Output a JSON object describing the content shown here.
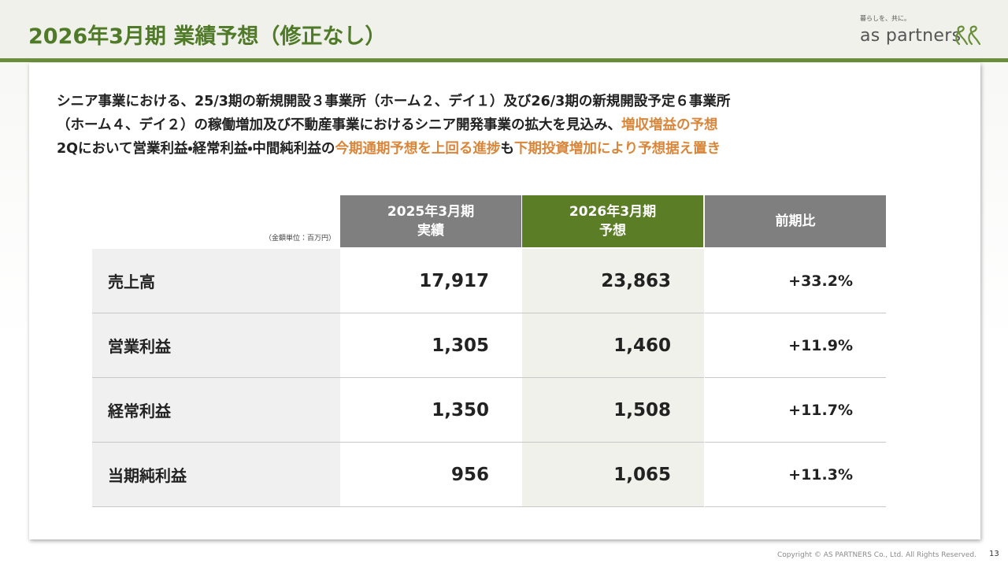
{
  "header": {
    "title": "2026年3月期 業績予想（修正なし）",
    "logo_tagline": "暮らしを、共に。",
    "logo_name": "as partners"
  },
  "body": {
    "lines": [
      [
        {
          "text": "シニア事業における、25/3期の新規開設３事業所（ホーム２、デイ１）及び26/3期の新規開設予定６事業所",
          "highlight": false
        }
      ],
      [
        {
          "text": "（ホーム４、デイ２）の稼働増加及び不動産事業におけるシニア開発事業の拡大を見込み、",
          "highlight": false
        },
        {
          "text": "増収増益の予想",
          "highlight": true
        }
      ],
      [
        {
          "text": "2Qにおいて営業利益・経常利益・中間純利益の",
          "highlight": false
        },
        {
          "text": "今期通期予想を上回る進捗",
          "highlight": true
        },
        {
          "text": "も",
          "highlight": false
        },
        {
          "text": "下期投資増加により予想据え置き",
          "highlight": true
        }
      ]
    ]
  },
  "table": {
    "unit_note": "（金額単位：百万円）",
    "columns": [
      [
        "2025年3月期",
        "実績"
      ],
      [
        "2026年3月期",
        "予想"
      ],
      [
        "前期比"
      ]
    ],
    "rows": [
      [
        "売上高",
        "17,917",
        "23,863",
        "+33.2%"
      ],
      [
        "営業利益",
        "1,305",
        "1,460",
        "+11.9%"
      ],
      [
        "経常利益",
        "1,350",
        "1,508",
        "+11.7%"
      ],
      [
        "当期純利益",
        "956",
        "1,065",
        "+11.3%"
      ]
    ]
  },
  "footer": {
    "copyright": "Copyright © AS PARTNERS Co., Ltd. All Rights Reserved.",
    "page": "13"
  }
}
